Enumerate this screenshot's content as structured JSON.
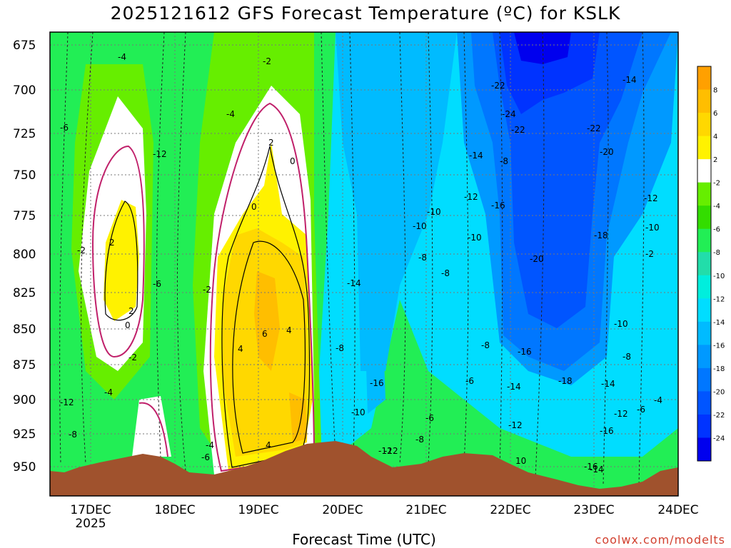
{
  "title": "2025121612 GFS Forecast Temperature (ºC) for KSLK",
  "xlabel": "Forecast Time (UTC)",
  "credit": "coolwx.com/modelts",
  "chart_data": {
    "type": "heatmap",
    "title": "2025121612 GFS Forecast Temperature (ºC) for KSLK",
    "xlabel": "Forecast Time (UTC)",
    "ylabel": "",
    "x_ticks": [
      "17DEC",
      "18DEC",
      "19DEC",
      "20DEC",
      "21DEC",
      "22DEC",
      "23DEC",
      "24DEC"
    ],
    "x_subtick": "2025",
    "y_ticks": [
      675,
      700,
      725,
      750,
      775,
      800,
      825,
      850,
      875,
      900,
      925,
      950
    ],
    "ylim": [
      965,
      665
    ],
    "xlim_days": [
      16.5,
      24.0
    ],
    "colorbar_labels": [
      "8",
      "6",
      "4",
      "2",
      "-2",
      "-4",
      "-6",
      "-8",
      "-10",
      "-12",
      "-14",
      "-16",
      "-18",
      "-20",
      "-22",
      "-24"
    ],
    "colorbar_colors": [
      "#ffa000",
      "#ffbe00",
      "#ffd800",
      "#fff200",
      "#ffffff",
      "#66ee00",
      "#33dd00",
      "#22ee55",
      "#22ddaa",
      "#00eedd",
      "#00ddff",
      "#00bbff",
      "#0099ff",
      "#0077ff",
      "#0055ff",
      "#0033ff",
      "#0000ee"
    ],
    "terrain_color": "#a0522d",
    "grid": true,
    "contour_labels": [
      "-4",
      "-2",
      "-4",
      "-6",
      "-12",
      "-2",
      "2",
      "0",
      "0",
      "-22",
      "-24",
      "-22",
      "-22",
      "-14",
      "-20",
      "-14",
      "-8",
      "-12",
      "-16",
      "-10",
      "-10",
      "-10",
      "-12",
      "-10",
      "-18",
      "-20",
      "-8",
      "-8",
      "-2",
      "2",
      "2",
      "0",
      "-2",
      "-6",
      "-2",
      "-14",
      "6",
      "4",
      "4",
      "-8",
      "-16",
      "-16",
      "-18",
      "-10",
      "-8",
      "-6",
      "-8",
      "-16",
      "-14",
      "-14",
      "-4",
      "-12",
      "-4",
      "-12",
      "-10",
      "-6",
      "-8",
      "-6",
      "-12",
      "-16",
      "-12",
      "4",
      "-4",
      "-6",
      "-8",
      "10",
      "-14",
      "-12"
    ]
  }
}
